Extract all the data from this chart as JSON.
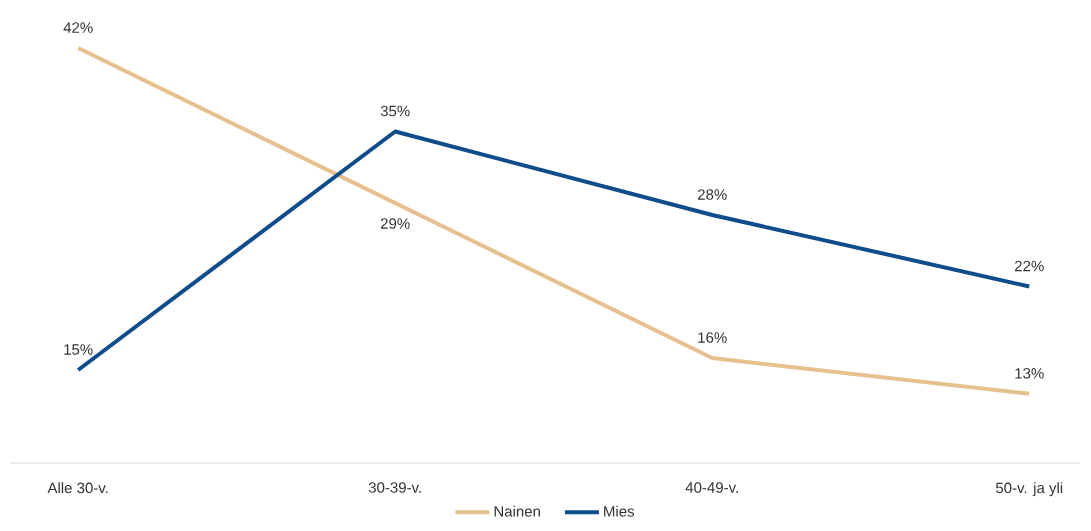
{
  "chart_data": {
    "type": "line",
    "categories": [
      "Alle 30-v.",
      "30-39-v.",
      "40-49-v.",
      "50-v. ja yli"
    ],
    "series": [
      {
        "name": "Nainen",
        "color": "#e6c08f",
        "values": [
          42,
          29,
          16,
          13
        ],
        "value_labels": [
          "42%",
          "29%",
          "16%",
          "13%"
        ]
      },
      {
        "name": "Mies",
        "color": "#0f4c8c",
        "values": [
          15,
          35,
          28,
          22
        ],
        "value_labels": [
          "15%",
          "35%",
          "28%",
          "22%"
        ]
      }
    ],
    "tick_labels": "x",
    "grid": false,
    "legend": "bottom",
    "marker": "none",
    "line_style": "solid"
  }
}
